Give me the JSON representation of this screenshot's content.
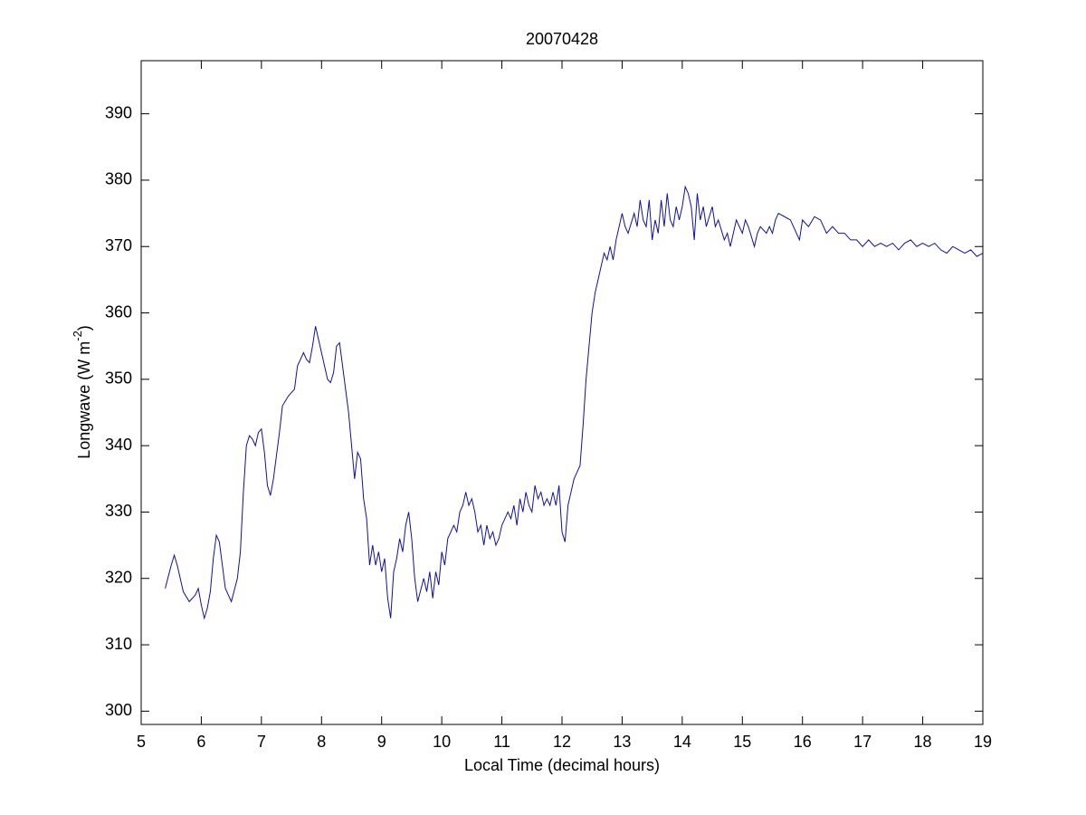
{
  "chart_data": {
    "type": "line",
    "title": "20070428",
    "xlabel": "Local Time (decimal hours)",
    "ylabel_parts": [
      "Longwave (W m",
      "-2",
      ")"
    ],
    "xlim": [
      5,
      19
    ],
    "xticks": [
      5,
      6,
      7,
      8,
      9,
      10,
      11,
      12,
      13,
      14,
      15,
      16,
      17,
      18,
      19
    ],
    "ylim": [
      298,
      398
    ],
    "yticks": [
      300,
      310,
      320,
      330,
      340,
      350,
      360,
      370,
      380,
      390
    ],
    "grid": false,
    "series": [
      {
        "name": "Longwave",
        "color": "#1010a0",
        "x": [
          5.4,
          5.5,
          5.55,
          5.6,
          5.7,
          5.8,
          5.9,
          5.95,
          6.0,
          6.05,
          6.1,
          6.15,
          6.2,
          6.25,
          6.3,
          6.4,
          6.5,
          6.6,
          6.65,
          6.7,
          6.75,
          6.8,
          6.85,
          6.9,
          6.95,
          7.0,
          7.05,
          7.1,
          7.15,
          7.2,
          7.3,
          7.35,
          7.45,
          7.55,
          7.6,
          7.7,
          7.75,
          7.8,
          7.85,
          7.9,
          7.95,
          8.0,
          8.1,
          8.15,
          8.2,
          8.25,
          8.3,
          8.35,
          8.45,
          8.55,
          8.6,
          8.65,
          8.7,
          8.75,
          8.8,
          8.85,
          8.9,
          8.95,
          9.0,
          9.05,
          9.1,
          9.15,
          9.2,
          9.25,
          9.3,
          9.35,
          9.4,
          9.45,
          9.5,
          9.55,
          9.6,
          9.7,
          9.75,
          9.8,
          9.85,
          9.9,
          9.95,
          10.0,
          10.05,
          10.1,
          10.2,
          10.25,
          10.3,
          10.35,
          10.4,
          10.45,
          10.5,
          10.55,
          10.6,
          10.65,
          10.7,
          10.75,
          10.8,
          10.85,
          10.9,
          10.95,
          11.0,
          11.1,
          11.15,
          11.2,
          11.25,
          11.3,
          11.35,
          11.4,
          11.45,
          11.5,
          11.55,
          11.6,
          11.65,
          11.7,
          11.75,
          11.8,
          11.85,
          11.9,
          11.95,
          12.0,
          12.05,
          12.1,
          12.15,
          12.2,
          12.25,
          12.3,
          12.35,
          12.4,
          12.45,
          12.5,
          12.55,
          12.6,
          12.65,
          12.7,
          12.75,
          12.8,
          12.85,
          12.9,
          12.95,
          13.0,
          13.05,
          13.1,
          13.2,
          13.25,
          13.3,
          13.35,
          13.4,
          13.45,
          13.5,
          13.55,
          13.6,
          13.65,
          13.7,
          13.75,
          13.8,
          13.85,
          13.9,
          13.95,
          14.0,
          14.05,
          14.1,
          14.15,
          14.2,
          14.25,
          14.3,
          14.35,
          14.4,
          14.5,
          14.55,
          14.6,
          14.7,
          14.75,
          14.8,
          14.85,
          14.9,
          15.0,
          15.05,
          15.1,
          15.2,
          15.25,
          15.3,
          15.4,
          15.45,
          15.5,
          15.55,
          15.6,
          15.7,
          15.8,
          15.9,
          15.95,
          16.0,
          16.1,
          16.2,
          16.3,
          16.4,
          16.5,
          16.6,
          16.7,
          16.8,
          16.9,
          17.0,
          17.1,
          17.2,
          17.3,
          17.4,
          17.5,
          17.6,
          17.7,
          17.8,
          17.9,
          18.0,
          18.1,
          18.2,
          18.3,
          18.4,
          18.5,
          18.6,
          18.7,
          18.8,
          18.9,
          19.0
        ],
        "values": [
          318.5,
          322,
          323.5,
          322,
          318,
          316.5,
          317.5,
          318.5,
          316,
          314,
          315.5,
          318,
          323,
          326.5,
          325.5,
          318.5,
          316.5,
          320,
          324,
          333,
          340,
          341.5,
          341,
          340,
          342,
          342.5,
          339,
          334,
          332.5,
          335,
          342,
          346,
          347.5,
          348.5,
          352,
          354,
          353,
          352.5,
          355,
          358,
          356,
          354,
          350,
          349.5,
          351,
          355,
          355.5,
          352,
          345,
          335,
          339,
          338,
          332,
          329,
          322,
          325,
          322,
          324,
          321,
          323,
          317,
          314,
          321,
          323,
          326,
          324,
          328,
          330,
          326,
          320,
          316.5,
          320,
          318,
          321,
          317,
          321,
          319,
          324,
          322,
          326,
          328,
          327,
          330,
          331,
          333,
          331,
          332,
          330,
          327,
          328,
          325,
          328,
          326,
          327,
          325,
          326,
          328,
          330,
          329,
          331,
          328,
          332,
          330,
          333,
          331,
          330,
          334,
          332,
          333,
          331,
          332,
          331,
          333,
          331,
          334,
          327,
          325.5,
          331,
          333,
          335,
          336,
          337,
          343,
          350,
          355,
          360,
          363,
          365,
          367,
          369,
          368,
          370,
          368,
          371,
          373,
          375,
          373,
          372,
          375,
          373,
          377,
          374,
          373,
          377,
          371,
          374,
          372,
          377,
          373,
          378,
          374,
          373,
          376,
          374,
          376,
          379,
          378,
          376,
          371,
          378,
          374,
          376,
          373,
          376,
          373,
          374,
          371,
          372,
          370,
          372,
          374,
          372,
          374,
          373,
          370,
          372,
          373,
          372,
          373,
          372,
          374,
          375,
          374.5,
          374,
          372,
          371,
          374,
          373,
          374.5,
          374,
          372,
          373,
          372,
          372,
          371,
          371,
          370,
          371,
          370,
          370.5,
          370,
          370.5,
          369.5,
          370.5,
          371,
          370,
          370.5,
          370,
          370.5,
          369.5,
          369,
          370,
          369.5,
          369,
          369.5,
          368.5,
          369
        ]
      }
    ]
  }
}
